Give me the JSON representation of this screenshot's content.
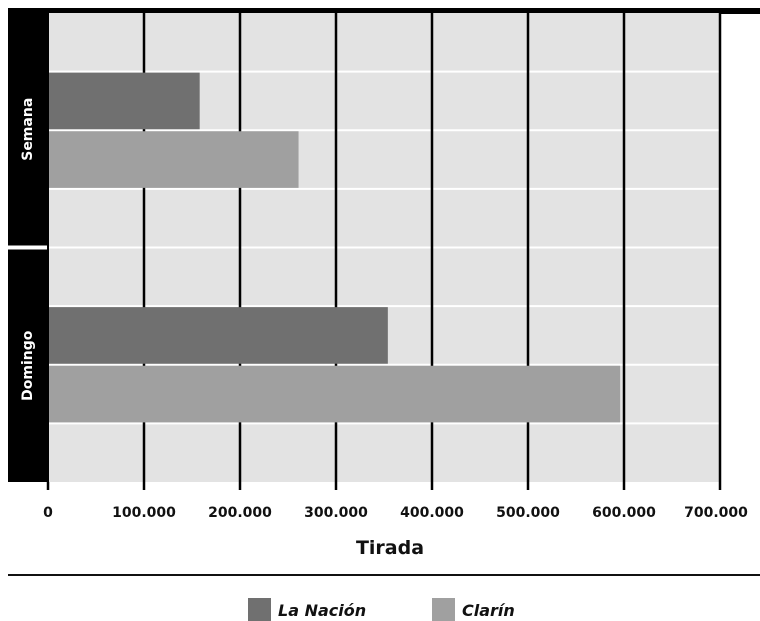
{
  "chart_data": {
    "type": "bar",
    "orientation": "horizontal",
    "categories": [
      "Semana",
      "Domingo"
    ],
    "series": [
      {
        "name": "La Nación",
        "values": [
          158000,
          354000
        ],
        "color": "#707070"
      },
      {
        "name": "Clarín",
        "values": [
          261000,
          596000
        ],
        "color": "#a0a0a0"
      }
    ],
    "xlabel": "Tirada",
    "ylabel": "",
    "xlim": [
      0,
      700000
    ],
    "xticks": [
      0,
      100000,
      200000,
      300000,
      400000,
      500000,
      600000,
      700000
    ],
    "xtick_labels": [
      "0",
      "100.000",
      "200.000",
      "300.000",
      "400.000",
      "500.000",
      "600.000",
      "700.000"
    ],
    "grid": true,
    "legend_position": "bottom-center",
    "plot_background": "#e3e3e3",
    "category_band_color": "#000000"
  }
}
